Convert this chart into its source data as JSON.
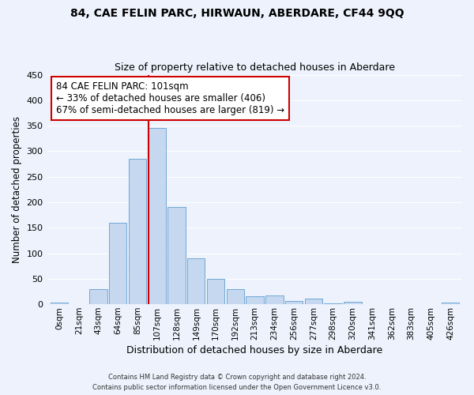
{
  "title": "84, CAE FELIN PARC, HIRWAUN, ABERDARE, CF44 9QQ",
  "subtitle": "Size of property relative to detached houses in Aberdare",
  "xlabel": "Distribution of detached houses by size in Aberdare",
  "ylabel": "Number of detached properties",
  "bar_color": "#c5d8f0",
  "bar_edge_color": "#6fa8d4",
  "background_color": "#edf2fc",
  "grid_color": "#ffffff",
  "categories": [
    "0sqm",
    "21sqm",
    "43sqm",
    "64sqm",
    "85sqm",
    "107sqm",
    "128sqm",
    "149sqm",
    "170sqm",
    "192sqm",
    "213sqm",
    "234sqm",
    "256sqm",
    "277sqm",
    "298sqm",
    "320sqm",
    "341sqm",
    "362sqm",
    "383sqm",
    "405sqm",
    "426sqm"
  ],
  "values": [
    3,
    0,
    30,
    160,
    285,
    345,
    190,
    90,
    50,
    30,
    15,
    18,
    6,
    11,
    2,
    5,
    1,
    1,
    1,
    0,
    4
  ],
  "ylim": [
    0,
    450
  ],
  "yticks": [
    0,
    50,
    100,
    150,
    200,
    250,
    300,
    350,
    400,
    450
  ],
  "property_line_idx": 5,
  "property_line_color": "#cc0000",
  "annotation_line1": "84 CAE FELIN PARC: 101sqm",
  "annotation_line2": "← 33% of detached houses are smaller (406)",
  "annotation_line3": "67% of semi-detached houses are larger (819) →",
  "annotation_box_color": "#ffffff",
  "annotation_box_edge_color": "#cc0000",
  "footer_line1": "Contains HM Land Registry data © Crown copyright and database right 2024.",
  "footer_line2": "Contains public sector information licensed under the Open Government Licence v3.0."
}
